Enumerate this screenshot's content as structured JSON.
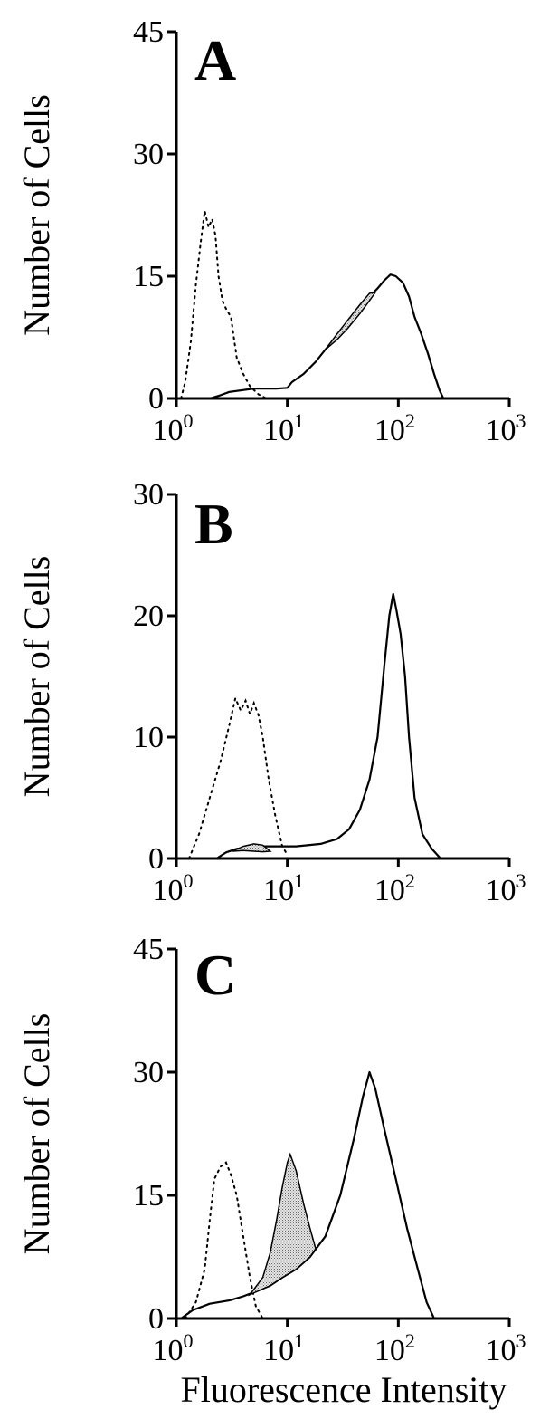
{
  "colors": {
    "line": "#000000",
    "shade": "#cfcfcf",
    "background": "#ffffff"
  },
  "chart_data": [
    {
      "type": "line",
      "panel_label": "A",
      "ylabel": "Number of Cells",
      "xlabel": "",
      "x_scale": "log",
      "xlim": [
        1,
        1000
      ],
      "x_ticks": [
        1,
        10,
        100,
        1000
      ],
      "x_tick_labels": [
        {
          "base": "10",
          "exp": "0"
        },
        {
          "base": "10",
          "exp": "1"
        },
        {
          "base": "10",
          "exp": "2"
        },
        {
          "base": "10",
          "exp": "3"
        }
      ],
      "ylim": [
        0,
        45
      ],
      "y_ticks": [
        0,
        15,
        30,
        45
      ],
      "y_tick_labels": [
        "0",
        "15",
        "30",
        "45"
      ],
      "series": [
        {
          "style": "dotted",
          "points": [
            [
              1.1,
              0
            ],
            [
              1.2,
              2
            ],
            [
              1.35,
              7
            ],
            [
              1.5,
              14
            ],
            [
              1.65,
              19
            ],
            [
              1.8,
              23
            ],
            [
              1.95,
              21
            ],
            [
              2.1,
              22
            ],
            [
              2.25,
              20
            ],
            [
              2.4,
              15
            ],
            [
              2.6,
              12
            ],
            [
              2.8,
              11
            ],
            [
              3.1,
              10
            ],
            [
              3.5,
              5
            ],
            [
              4.0,
              3
            ],
            [
              4.6,
              1.5
            ],
            [
              5.5,
              0.5
            ],
            [
              6.5,
              0
            ]
          ]
        },
        {
          "style": "solid",
          "points": [
            [
              2.0,
              0
            ],
            [
              2.5,
              0.4
            ],
            [
              3,
              0.8
            ],
            [
              5,
              1.2
            ],
            [
              8,
              1.2
            ],
            [
              10,
              1.3
            ],
            [
              11,
              2
            ],
            [
              14,
              3
            ],
            [
              18,
              4.5
            ],
            [
              22,
              6
            ],
            [
              28,
              7.5
            ],
            [
              35,
              9
            ],
            [
              45,
              11
            ],
            [
              55,
              12.5
            ],
            [
              65,
              13.5
            ],
            [
              75,
              14.5
            ],
            [
              85,
              15.2
            ],
            [
              95,
              15
            ],
            [
              110,
              14.2
            ],
            [
              125,
              12.5
            ],
            [
              140,
              10
            ],
            [
              160,
              8
            ],
            [
              185,
              5.5
            ],
            [
              210,
              3
            ],
            [
              235,
              1
            ],
            [
              255,
              0
            ]
          ]
        },
        {
          "style": "shaded",
          "lower": [
            [
              22,
              6
            ],
            [
              28,
              7.2
            ],
            [
              35,
              8.6
            ],
            [
              45,
              10.4
            ],
            [
              55,
              12
            ],
            [
              62,
              13
            ]
          ],
          "upper": [
            [
              22,
              6
            ],
            [
              28,
              7.9
            ],
            [
              35,
              9.6
            ],
            [
              45,
              11.5
            ],
            [
              55,
              12.9
            ],
            [
              62,
              13
            ]
          ]
        }
      ]
    },
    {
      "type": "line",
      "panel_label": "B",
      "ylabel": "Number of Cells",
      "xlabel": "",
      "x_scale": "log",
      "xlim": [
        1,
        1000
      ],
      "x_ticks": [
        1,
        10,
        100,
        1000
      ],
      "x_tick_labels": [
        {
          "base": "10",
          "exp": "0"
        },
        {
          "base": "10",
          "exp": "1"
        },
        {
          "base": "10",
          "exp": "2"
        },
        {
          "base": "10",
          "exp": "3"
        }
      ],
      "ylim": [
        0,
        30
      ],
      "y_ticks": [
        0,
        10,
        20,
        30
      ],
      "y_tick_labels": [
        "0",
        "10",
        "20",
        "30"
      ],
      "series": [
        {
          "style": "dotted",
          "points": [
            [
              1.3,
              0
            ],
            [
              1.6,
              2
            ],
            [
              2.0,
              5
            ],
            [
              2.5,
              8
            ],
            [
              3.0,
              11
            ],
            [
              3.4,
              13.2
            ],
            [
              3.8,
              12.2
            ],
            [
              4.2,
              13
            ],
            [
              4.6,
              11.9
            ],
            [
              5.0,
              12.8
            ],
            [
              5.5,
              11.8
            ],
            [
              6.0,
              10
            ],
            [
              6.8,
              6.5
            ],
            [
              7.8,
              3.5
            ],
            [
              9,
              1
            ],
            [
              10,
              0.3
            ]
          ]
        },
        {
          "style": "solid",
          "points": [
            [
              2.3,
              0
            ],
            [
              2.8,
              0.5
            ],
            [
              3.5,
              0.8
            ],
            [
              5,
              1.0
            ],
            [
              8,
              1.0
            ],
            [
              12,
              1.0
            ],
            [
              20,
              1.2
            ],
            [
              28,
              1.6
            ],
            [
              36,
              2.4
            ],
            [
              45,
              4
            ],
            [
              55,
              6.5
            ],
            [
              65,
              10
            ],
            [
              75,
              16
            ],
            [
              83,
              20
            ],
            [
              90,
              21.8
            ],
            [
              96,
              20.5
            ],
            [
              105,
              18.5
            ],
            [
              115,
              15
            ],
            [
              125,
              10
            ],
            [
              140,
              5
            ],
            [
              165,
              2
            ],
            [
              200,
              0.8
            ],
            [
              240,
              0
            ]
          ]
        },
        {
          "style": "shaded",
          "lower": [
            [
              3.2,
              0.6
            ],
            [
              4,
              0.65
            ],
            [
              5,
              0.6
            ],
            [
              6,
              0.55
            ],
            [
              7,
              0.6
            ]
          ],
          "upper": [
            [
              3.2,
              0.6
            ],
            [
              4,
              1.0
            ],
            [
              5,
              1.2
            ],
            [
              6,
              1.1
            ],
            [
              7,
              0.6
            ]
          ]
        }
      ]
    },
    {
      "type": "line",
      "panel_label": "C",
      "ylabel": "Number of Cells",
      "xlabel": "Fluorescence Intensity",
      "x_scale": "log",
      "xlim": [
        1,
        1000
      ],
      "x_ticks": [
        1,
        10,
        100,
        1000
      ],
      "x_tick_labels": [
        {
          "base": "10",
          "exp": "0"
        },
        {
          "base": "10",
          "exp": "1"
        },
        {
          "base": "10",
          "exp": "2"
        },
        {
          "base": "10",
          "exp": "3"
        }
      ],
      "ylim": [
        0,
        45
      ],
      "y_ticks": [
        0,
        15,
        30,
        45
      ],
      "y_tick_labels": [
        "0",
        "15",
        "30",
        "45"
      ],
      "series": [
        {
          "style": "dotted",
          "points": [
            [
              1.2,
              0
            ],
            [
              1.5,
              2
            ],
            [
              1.8,
              6
            ],
            [
              2.0,
              12
            ],
            [
              2.2,
              17
            ],
            [
              2.5,
              18.5
            ],
            [
              2.8,
              19
            ],
            [
              3.1,
              17.5
            ],
            [
              3.5,
              15
            ],
            [
              4.0,
              10
            ],
            [
              4.6,
              5
            ],
            [
              5.2,
              1.5
            ],
            [
              6,
              0
            ]
          ]
        },
        {
          "style": "solid",
          "points": [
            [
              1.1,
              0
            ],
            [
              1.4,
              1
            ],
            [
              2,
              1.8
            ],
            [
              3,
              2.2
            ],
            [
              4,
              2.7
            ],
            [
              5,
              3.2
            ],
            [
              7,
              4
            ],
            [
              9,
              5
            ],
            [
              12,
              6
            ],
            [
              16,
              7.5
            ],
            [
              22,
              10
            ],
            [
              30,
              15
            ],
            [
              40,
              22
            ],
            [
              48,
              27
            ],
            [
              55,
              30
            ],
            [
              62,
              28
            ],
            [
              75,
              23
            ],
            [
              95,
              17
            ],
            [
              120,
              11
            ],
            [
              150,
              6
            ],
            [
              180,
              2
            ],
            [
              210,
              0
            ]
          ]
        },
        {
          "style": "shaded",
          "lower": [
            [
              4.6,
              2.9
            ],
            [
              7,
              4
            ],
            [
              9,
              5
            ],
            [
              12,
              6
            ],
            [
              16,
              7.5
            ],
            [
              18,
              8.5
            ]
          ],
          "upper": [
            [
              4.6,
              2.9
            ],
            [
              6,
              5
            ],
            [
              7,
              8
            ],
            [
              8,
              12
            ],
            [
              9,
              16
            ],
            [
              10,
              19
            ],
            [
              10.6,
              20
            ],
            [
              12,
              18
            ],
            [
              14,
              14
            ],
            [
              16,
              11
            ],
            [
              18,
              8.5
            ]
          ]
        }
      ]
    }
  ]
}
